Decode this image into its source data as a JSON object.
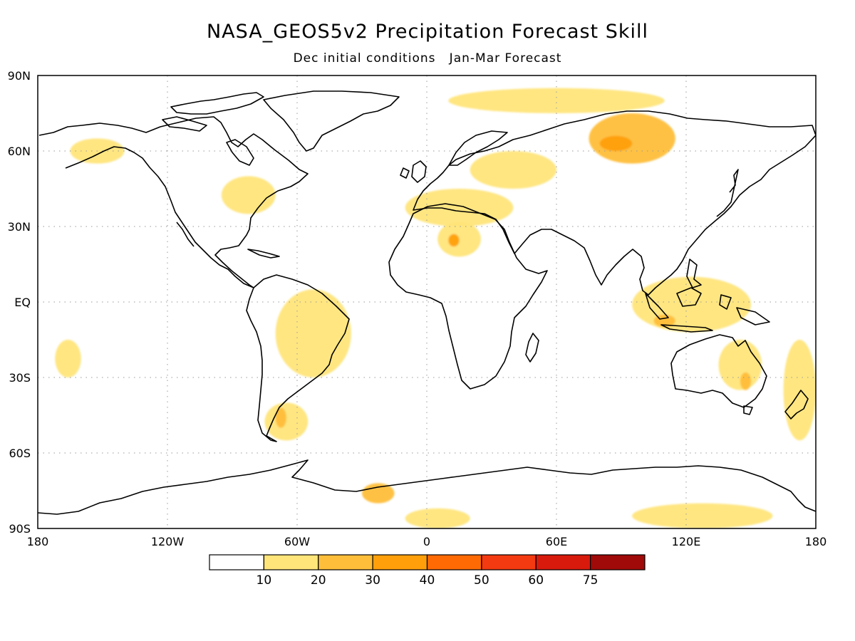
{
  "chart_data": {
    "type": "heatmap",
    "title": "NASA_GEOS5v2 Precipitation Forecast Skill",
    "subtitle": "Dec initial conditions   Jan-Mar Forecast",
    "xlim": [
      -180,
      180
    ],
    "ylim": [
      -90,
      90
    ],
    "x_ticks": [
      {
        "value": -180,
        "label": "180"
      },
      {
        "value": -120,
        "label": "120W"
      },
      {
        "value": -60,
        "label": "60W"
      },
      {
        "value": 0,
        "label": "0"
      },
      {
        "value": 60,
        "label": "60E"
      },
      {
        "value": 120,
        "label": "120E"
      },
      {
        "value": 180,
        "label": "180"
      }
    ],
    "y_ticks": [
      {
        "value": 90,
        "label": "90N"
      },
      {
        "value": 60,
        "label": "60N"
      },
      {
        "value": 30,
        "label": "30N"
      },
      {
        "value": 0,
        "label": "EQ"
      },
      {
        "value": -30,
        "label": "30S"
      },
      {
        "value": -60,
        "label": "60S"
      },
      {
        "value": -90,
        "label": "90S"
      }
    ],
    "grid": true,
    "colorbar": {
      "placement": "bottom",
      "levels": [
        "10",
        "20",
        "30",
        "40",
        "50",
        "60",
        "75"
      ],
      "colors": [
        "#ffffff",
        "#ffe57a",
        "#ffbe3a",
        "#ff9f0a",
        "#ff6a05",
        "#f43a10",
        "#d81a0c",
        "#a00a08"
      ]
    },
    "skill_regions": [
      {
        "region": "Antarctica (South Atlantic / Indian Ocean sector)",
        "lon": [
          -10,
          20
        ],
        "lat": [
          -82,
          -90
        ],
        "level": "10-20"
      },
      {
        "region": "Antarctica (Indian / Pacific sector)",
        "lon": [
          95,
          160
        ],
        "lat": [
          -80,
          -90
        ],
        "level": "10-20"
      },
      {
        "region": "Antarctic coast near 20W",
        "lon": [
          -30,
          -15
        ],
        "lat": [
          -72,
          -80
        ],
        "level": "20-30"
      },
      {
        "region": "Central Siberia",
        "lon": [
          75,
          115
        ],
        "lat": [
          75,
          55
        ],
        "level": "20-30"
      },
      {
        "region": "Siberia core",
        "lon": [
          80,
          95
        ],
        "lat": [
          66,
          60
        ],
        "level": "30-40"
      },
      {
        "region": "Sahara (Algeria-Libya)",
        "lon": [
          5,
          25
        ],
        "lat": [
          32,
          18
        ],
        "level": "10-20"
      },
      {
        "region": "Sahara core",
        "lon": [
          10,
          15
        ],
        "lat": [
          27,
          22
        ],
        "level": "30-40"
      },
      {
        "region": "Mediterranean",
        "lon": [
          -10,
          40
        ],
        "lat": [
          45,
          30
        ],
        "level": "10-20"
      },
      {
        "region": "Maritime Continent",
        "lon": [
          95,
          150
        ],
        "lat": [
          10,
          -12
        ],
        "level": "10-20"
      },
      {
        "region": "Java Sea",
        "lon": [
          105,
          115
        ],
        "lat": [
          -5,
          -10
        ],
        "level": "20-30"
      },
      {
        "region": "Eastern Australia",
        "lon": [
          135,
          155
        ],
        "lat": [
          -15,
          -35
        ],
        "level": "10-20"
      },
      {
        "region": "Southeast Australia",
        "lon": [
          145,
          150
        ],
        "lat": [
          -28,
          -35
        ],
        "level": "20-30"
      },
      {
        "region": "Southern South America",
        "lon": [
          -75,
          -55
        ],
        "lat": [
          -40,
          -55
        ],
        "level": "10-20"
      },
      {
        "region": "Patagonia",
        "lon": [
          -70,
          -65
        ],
        "lat": [
          -42,
          -50
        ],
        "level": "20-30"
      },
      {
        "region": "Southwest Pacific (New Zealand east)",
        "lon": [
          165,
          180
        ],
        "lat": [
          -15,
          -55
        ],
        "level": "10-20"
      },
      {
        "region": "Central North Pacific",
        "lon": [
          -172,
          -160
        ],
        "lat": [
          -15,
          -30
        ],
        "level": "10-20"
      },
      {
        "region": "Alaska / NE Pacific",
        "lon": [
          -165,
          -140
        ],
        "lat": [
          65,
          55
        ],
        "level": "10-20"
      },
      {
        "region": "Arctic Ocean fringe",
        "lon": [
          10,
          110
        ],
        "lat": [
          85,
          75
        ],
        "level": "10-20"
      },
      {
        "region": "Great Lakes / E North America",
        "lon": [
          -95,
          -70
        ],
        "lat": [
          50,
          35
        ],
        "level": "10-20"
      },
      {
        "region": "Brazil",
        "lon": [
          -70,
          -35
        ],
        "lat": [
          5,
          -30
        ],
        "level": "10-20"
      },
      {
        "region": "Eastern Europe / Russia",
        "lon": [
          20,
          60
        ],
        "lat": [
          60,
          45
        ],
        "level": "10-20"
      }
    ]
  }
}
